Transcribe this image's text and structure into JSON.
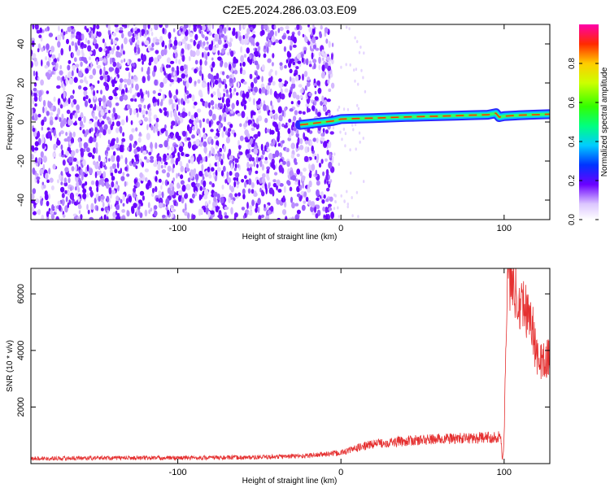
{
  "title": "C2E5.2024.286.03.03.E09",
  "chart_data": [
    {
      "type": "heatmap",
      "title": "C2E5.2024.286.03.03.E09",
      "xlabel": "Height of straight line (km)",
      "ylabel": "Frequency (Hz)",
      "xlim": [
        -190,
        128
      ],
      "ylim": [
        -50,
        50
      ],
      "x_ticks": [
        -100,
        0,
        100
      ],
      "y_ticks": [
        -40,
        -20,
        0,
        20,
        40
      ],
      "noise_region_x": [
        -190,
        -5
      ],
      "ridge": {
        "x": [
          -25,
          -15,
          -5,
          0,
          10,
          20,
          30,
          40,
          50,
          60,
          70,
          80,
          90,
          95,
          97,
          100,
          110,
          120,
          128
        ],
        "frequency": [
          -1.5,
          -0.5,
          0.5,
          1.5,
          1.8,
          2,
          2.3,
          2.6,
          2.8,
          3,
          3.2,
          3.5,
          3.7,
          4.5,
          2.5,
          3,
          3.5,
          3.8,
          4
        ]
      },
      "colorbar": {
        "label": "Normalized spectral amplitude",
        "ticks": [
          "0.0",
          "0.2",
          "0.4",
          "0.6",
          "0.8"
        ],
        "range": [
          0,
          1
        ]
      },
      "grid": false
    },
    {
      "type": "line",
      "xlabel": "Height of straight line (km)",
      "ylabel": "SNR (10 * v/v)",
      "xlim": [
        -190,
        128
      ],
      "ylim": [
        0,
        6900
      ],
      "x_ticks": [
        -100,
        0,
        100
      ],
      "y_ticks": [
        2000,
        4000,
        6000
      ],
      "series": [
        {
          "color": "#e53030",
          "x": [
            -190,
            -150,
            -100,
            -50,
            -20,
            0,
            10,
            20,
            40,
            60,
            80,
            90,
            98,
            99,
            100,
            101,
            102,
            105,
            110,
            115,
            117,
            120,
            125,
            128
          ],
          "values": [
            180,
            200,
            200,
            220,
            280,
            380,
            550,
            700,
            800,
            870,
            900,
            920,
            950,
            100,
            900,
            4200,
            6700,
            6400,
            5800,
            5300,
            5000,
            3700,
            3600,
            3800
          ]
        }
      ],
      "grid": false
    }
  ]
}
